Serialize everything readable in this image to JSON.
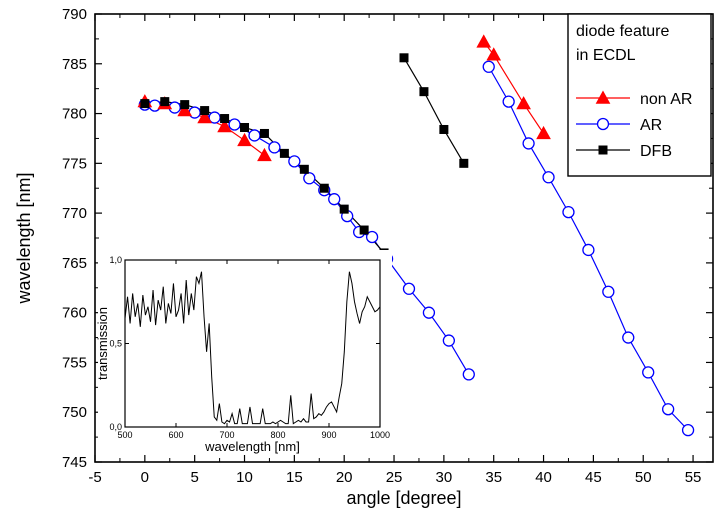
{
  "chart_data": [
    {
      "type": "line",
      "xlabel": "angle [degree]",
      "ylabel": "wavelength [nm]",
      "xlim": [
        -5,
        57
      ],
      "ylim": [
        745,
        790
      ],
      "xticks": [
        -5,
        0,
        5,
        10,
        15,
        20,
        25,
        30,
        35,
        40,
        45,
        50,
        55
      ],
      "yticks": [
        745,
        750,
        755,
        760,
        765,
        770,
        775,
        780,
        785,
        790
      ],
      "legend": {
        "title_lines": [
          "diode feature",
          "in ECDL"
        ],
        "placement": "top-right"
      },
      "series": [
        {
          "name": "non AR",
          "color": "#ff0000",
          "marker": "triangle-filled",
          "segments": [
            {
              "x": [
                0,
                2,
                4,
                6,
                8,
                10,
                12
              ],
              "y": [
                781.2,
                781.0,
                780.3,
                779.6,
                778.7,
                777.3,
                775.8
              ]
            },
            {
              "x": [
                34,
                35,
                38,
                40
              ],
              "y": [
                787.2,
                785.9,
                781.0,
                778.0
              ]
            }
          ]
        },
        {
          "name": "AR",
          "color": "#0000ff",
          "marker": "circle-open",
          "segments": [
            {
              "x": [
                0,
                1,
                3,
                5,
                7,
                9,
                11,
                13,
                15,
                16.5,
                18,
                19,
                20.3,
                21.5,
                22.8,
                24.3,
                26.5,
                28.5,
                30.5,
                32.5
              ],
              "y": [
                780.9,
                780.8,
                780.6,
                780.1,
                779.6,
                778.9,
                777.8,
                776.6,
                775.2,
                773.5,
                772.3,
                771.4,
                769.7,
                768.1,
                767.6,
                765.4,
                762.4,
                760.0,
                757.2,
                753.8
              ]
            },
            {
              "x": [
                34.5,
                36.5,
                38.5,
                40.5,
                42.5,
                44.5,
                46.5,
                48.5,
                50.5,
                52.5,
                54.5
              ],
              "y": [
                784.7,
                781.2,
                777.0,
                773.6,
                770.1,
                766.3,
                762.1,
                757.5,
                754.0,
                750.3,
                748.2
              ]
            }
          ]
        },
        {
          "name": "DFB",
          "color": "#000000",
          "marker": "square-filled",
          "segments": [
            {
              "x": [
                0,
                2,
                4,
                6,
                8,
                10,
                12,
                14,
                16,
                18,
                20,
                22,
                24
              ],
              "y": [
                781.0,
                781.2,
                780.9,
                780.3,
                779.5,
                778.6,
                778.0,
                776.0,
                774.4,
                772.5,
                770.4,
                768.3,
                766.0
              ]
            },
            {
              "x": [
                26,
                28,
                30,
                32
              ],
              "y": [
                785.6,
                782.2,
                778.4,
                775.0
              ]
            }
          ]
        }
      ]
    },
    {
      "type": "line",
      "placement": "inset-lower-left",
      "xlabel": "wavelength [nm]",
      "ylabel": "transmission",
      "xlim": [
        500,
        1000
      ],
      "ylim": [
        0,
        1.0
      ],
      "xticks": [
        500,
        600,
        700,
        800,
        900,
        1000
      ],
      "yticks": [
        "0,0",
        "0,5",
        "1,0"
      ],
      "yticks_values": [
        0,
        0.5,
        1.0
      ],
      "series": [
        {
          "color": "#000000",
          "x": [
            500,
            505,
            510,
            515,
            520,
            525,
            530,
            535,
            540,
            545,
            550,
            555,
            560,
            565,
            570,
            575,
            580,
            585,
            590,
            595,
            600,
            605,
            610,
            615,
            620,
            625,
            630,
            635,
            640,
            645,
            650,
            655,
            660,
            665,
            670,
            675,
            680,
            685,
            690,
            695,
            700,
            705,
            710,
            715,
            720,
            725,
            730,
            735,
            740,
            745,
            750,
            755,
            760,
            765,
            770,
            775,
            780,
            785,
            790,
            795,
            800,
            805,
            810,
            815,
            820,
            825,
            830,
            835,
            840,
            845,
            850,
            855,
            860,
            865,
            870,
            875,
            880,
            885,
            890,
            895,
            900,
            905,
            910,
            915,
            920,
            925,
            930,
            935,
            940,
            945,
            950,
            955,
            960,
            965,
            970,
            975,
            980,
            985,
            990,
            995,
            1000
          ],
          "y": [
            0.65,
            0.78,
            0.62,
            0.8,
            0.66,
            0.74,
            0.6,
            0.79,
            0.67,
            0.72,
            0.63,
            0.82,
            0.61,
            0.76,
            0.7,
            0.84,
            0.62,
            0.74,
            0.68,
            0.86,
            0.66,
            0.7,
            0.8,
            0.62,
            0.88,
            0.67,
            0.8,
            0.7,
            0.9,
            0.86,
            0.93,
            0.66,
            0.45,
            0.62,
            0.3,
            0.06,
            0.04,
            0.14,
            0.03,
            0.02,
            0.04,
            0.03,
            0.08,
            0.02,
            0.02,
            0.11,
            0.02,
            0.02,
            0.02,
            0.12,
            0.02,
            0.02,
            0.02,
            0.02,
            0.11,
            0.02,
            0.02,
            0.02,
            0.03,
            0.02,
            0.03,
            0.04,
            0.03,
            0.02,
            0.02,
            0.19,
            0.02,
            0.03,
            0.04,
            0.03,
            0.05,
            0.03,
            0.03,
            0.2,
            0.05,
            0.06,
            0.08,
            0.07,
            0.09,
            0.12,
            0.14,
            0.15,
            0.12,
            0.09,
            0.18,
            0.26,
            0.45,
            0.75,
            0.93,
            0.86,
            0.75,
            0.68,
            0.62,
            0.69,
            0.72,
            0.78,
            0.75,
            0.72,
            0.69,
            0.7,
            0.72
          ]
        }
      ]
    }
  ]
}
